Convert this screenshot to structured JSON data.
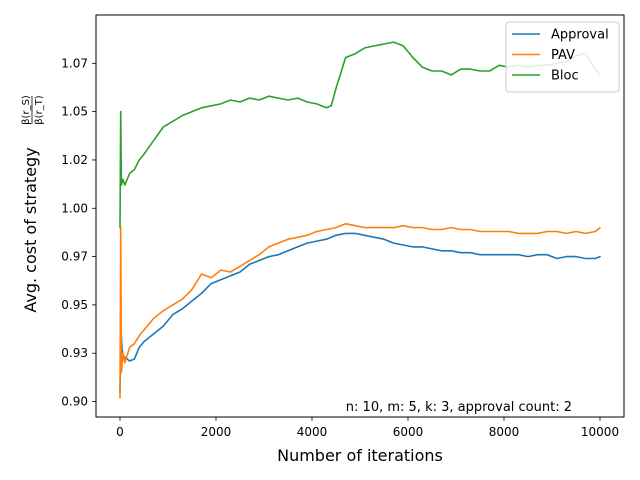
{
  "chart_data": {
    "type": "line",
    "xlabel": "Number of iterations",
    "ylabel": "Avg. cost of strategy",
    "ylabel_fraction": {
      "num": "β(r_S)",
      "den": "β(r_T)"
    },
    "xlim": [
      -500,
      10500
    ],
    "ylim": [
      0.892,
      1.1
    ],
    "x_ticks": [
      0,
      2000,
      4000,
      6000,
      8000,
      10000
    ],
    "x_tick_labels": [
      "0",
      "2000",
      "4000",
      "6000",
      "8000",
      "10000"
    ],
    "y_ticks": [
      0.9,
      0.925,
      0.95,
      0.975,
      1.0,
      1.025,
      1.05,
      1.075
    ],
    "y_tick_labels": [
      "0.90",
      "0.93",
      "0.95",
      "0.97",
      "1.00",
      "1.02",
      "1.05",
      "1.07"
    ],
    "annotation": "n: 10, m: 5, k: 3, approval count: 2",
    "grid": false,
    "legend_position": "top-right",
    "series": [
      {
        "name": "Approval",
        "color": "#1f77b4",
        "x": [
          0,
          20,
          40,
          70,
          100,
          200,
          300,
          400,
          500,
          700,
          900,
          1100,
          1300,
          1500,
          1700,
          1900,
          2100,
          2300,
          2500,
          2700,
          2900,
          3100,
          3300,
          3500,
          3700,
          3900,
          4100,
          4300,
          4500,
          4700,
          4900,
          5100,
          5300,
          5500,
          5700,
          5900,
          6100,
          6300,
          6500,
          6700,
          6900,
          7100,
          7300,
          7500,
          7700,
          7900,
          8100,
          8300,
          8500,
          8700,
          8900,
          9100,
          9300,
          9500,
          9700,
          9900,
          10000
        ],
        "y": [
          0.905,
          0.938,
          0.928,
          0.922,
          0.923,
          0.921,
          0.922,
          0.928,
          0.931,
          0.935,
          0.939,
          0.945,
          0.948,
          0.952,
          0.956,
          0.961,
          0.963,
          0.965,
          0.967,
          0.971,
          0.973,
          0.975,
          0.976,
          0.978,
          0.98,
          0.982,
          0.983,
          0.984,
          0.986,
          0.987,
          0.987,
          0.986,
          0.985,
          0.984,
          0.982,
          0.981,
          0.98,
          0.98,
          0.979,
          0.978,
          0.978,
          0.977,
          0.977,
          0.976,
          0.976,
          0.976,
          0.976,
          0.976,
          0.975,
          0.976,
          0.976,
          0.974,
          0.975,
          0.975,
          0.974,
          0.974,
          0.975
        ]
      },
      {
        "name": "PAV",
        "color": "#ff7f0e",
        "x": [
          0,
          15,
          30,
          60,
          100,
          200,
          300,
          400,
          500,
          700,
          900,
          1100,
          1300,
          1500,
          1700,
          1900,
          2100,
          2300,
          2500,
          2700,
          2900,
          3100,
          3300,
          3500,
          3700,
          3900,
          4100,
          4300,
          4500,
          4700,
          4900,
          5100,
          5300,
          5500,
          5700,
          5900,
          6100,
          6300,
          6500,
          6700,
          6900,
          7100,
          7300,
          7500,
          7700,
          7900,
          8100,
          8300,
          8500,
          8700,
          8900,
          9100,
          9300,
          9500,
          9700,
          9900,
          10000
        ],
        "y": [
          0.902,
          0.99,
          0.915,
          0.925,
          0.92,
          0.928,
          0.93,
          0.934,
          0.937,
          0.943,
          0.947,
          0.95,
          0.953,
          0.958,
          0.966,
          0.964,
          0.968,
          0.967,
          0.97,
          0.973,
          0.976,
          0.98,
          0.982,
          0.984,
          0.985,
          0.986,
          0.988,
          0.989,
          0.99,
          0.992,
          0.991,
          0.99,
          0.99,
          0.99,
          0.99,
          0.991,
          0.99,
          0.99,
          0.989,
          0.989,
          0.99,
          0.989,
          0.989,
          0.988,
          0.988,
          0.988,
          0.988,
          0.987,
          0.987,
          0.987,
          0.988,
          0.988,
          0.987,
          0.988,
          0.987,
          0.988,
          0.99
        ]
      },
      {
        "name": "Bloc",
        "color": "#2ca02c",
        "x": [
          0,
          15,
          30,
          60,
          100,
          200,
          300,
          400,
          500,
          700,
          900,
          1100,
          1300,
          1500,
          1700,
          1900,
          2100,
          2300,
          2500,
          2700,
          2900,
          3100,
          3300,
          3500,
          3700,
          3900,
          4100,
          4300,
          4400,
          4500,
          4700,
          4900,
          5100,
          5300,
          5500,
          5700,
          5900,
          6100,
          6300,
          6500,
          6700,
          6900,
          7100,
          7300,
          7500,
          7700,
          7900,
          8100,
          8300,
          8500,
          8700,
          8900,
          9100,
          9300,
          9500,
          9700,
          9900,
          10000
        ],
        "y": [
          0.99,
          1.05,
          1.012,
          1.015,
          1.012,
          1.018,
          1.02,
          1.025,
          1.028,
          1.035,
          1.042,
          1.045,
          1.048,
          1.05,
          1.052,
          1.053,
          1.054,
          1.056,
          1.055,
          1.057,
          1.056,
          1.058,
          1.057,
          1.056,
          1.057,
          1.055,
          1.054,
          1.052,
          1.053,
          1.062,
          1.078,
          1.08,
          1.083,
          1.084,
          1.085,
          1.086,
          1.084,
          1.078,
          1.073,
          1.071,
          1.071,
          1.069,
          1.072,
          1.072,
          1.071,
          1.071,
          1.074,
          1.073,
          1.074,
          1.073,
          1.074,
          1.074,
          1.075,
          1.076,
          1.079,
          1.08,
          1.072,
          1.069
        ]
      }
    ]
  }
}
